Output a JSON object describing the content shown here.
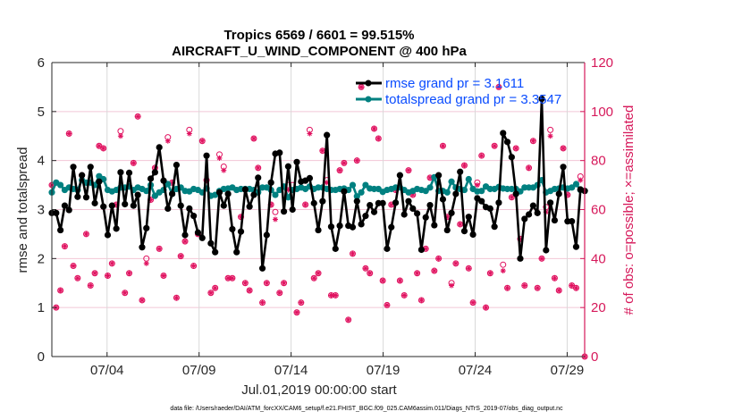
{
  "chart_data": {
    "type": "line",
    "title": [
      "Tropics 6569 / 6601 = 99.515%",
      "AIRCRAFT_U_WIND_COMPONENT @ 400 hPa"
    ],
    "xlabel": "Jul.01,2019 00:00:00 start",
    "ylabel": "rmse and totalspread",
    "ylabel_right": "# of obs: o=possible; ×=assimilated",
    "footnote": "data file: /Users/raeder/DAI/ATM_forcXX/CAM6_setup/f.e21.FHIST_BGC.f09_025.CAM6assim.011/Diags_NTrS_2019-07/obs_diag_output.nc",
    "xlim_days": [
      0,
      28.95
    ],
    "ylim": [
      0,
      6
    ],
    "ylim_right": [
      0,
      120
    ],
    "yticks": [
      "0",
      "1",
      "2",
      "3",
      "4",
      "5",
      "6"
    ],
    "yticks_right": [
      "0",
      "20",
      "40",
      "60",
      "80",
      "100",
      "120"
    ],
    "xticks": [
      {
        "day": 3,
        "label": "07/04"
      },
      {
        "day": 8,
        "label": "07/09"
      },
      {
        "day": 13,
        "label": "07/14"
      },
      {
        "day": 18,
        "label": "07/19"
      },
      {
        "day": 23,
        "label": "07/24"
      },
      {
        "day": 28,
        "label": "07/29"
      }
    ],
    "grid": true,
    "legend_position": "top-right",
    "colors": {
      "rmse": "#000000",
      "spread": "#008080",
      "obs": "#e0115f",
      "legend_text": "#0a4cff",
      "right_axis": "#d6185a",
      "hgrid": "#f2c6d6",
      "vgrid": "#d9d9d9"
    },
    "x_start_day": 0,
    "x_step_day": 0.2335,
    "series": [
      {
        "name": "rmse grand pr = 3.1611",
        "legend": "rmse grand pr = 3.1611",
        "axis": "left",
        "values": [
          2.93,
          2.93,
          2.58,
          3.08,
          2.99,
          3.87,
          3.26,
          3.7,
          3.25,
          3.87,
          3.13,
          3.57,
          3.06,
          2.48,
          3.08,
          2.61,
          3.76,
          3.11,
          3.75,
          3.08,
          3.3,
          2.23,
          2.62,
          3.63,
          3.76,
          4.27,
          3.59,
          3.02,
          3.32,
          3.91,
          3.08,
          2.48,
          3.02,
          2.87,
          2.53,
          2.42,
          4.1,
          2.31,
          2.13,
          3.35,
          3.08,
          3.32,
          2.6,
          2.13,
          2.55,
          3.41,
          3.06,
          3.3,
          3.65,
          1.8,
          2.48,
          3.55,
          4.14,
          4.16,
          2.96,
          3.88,
          3.0,
          3.97,
          3.57,
          3.59,
          3.64,
          3.13,
          2.58,
          3.17,
          4.52,
          2.65,
          2.2,
          2.67,
          3.37,
          2.67,
          2.64,
          3.17,
          2.7,
          2.87,
          3.09,
          2.95,
          3.13,
          3.13,
          2.2,
          2.64,
          3.14,
          3.7,
          2.9,
          3.17,
          3.02,
          2.92,
          2.18,
          2.84,
          3.09,
          2.68,
          3.7,
          3.21,
          2.58,
          2.93,
          3.32,
          3.77,
          2.56,
          2.85,
          2.49,
          3.23,
          3.17,
          3.05,
          3.02,
          2.65,
          3.14,
          4.56,
          4.38,
          4.07,
          3.32,
          2.0,
          2.81,
          2.9,
          3.08,
          2.93,
          5.26,
          2.17,
          3.14,
          2.78,
          3.32,
          3.87,
          2.76,
          2.76,
          2.24,
          3.41,
          3.38
        ]
      },
      {
        "name": "totalspread grand pr = 3.3547",
        "legend": "totalspread grand pr = 3.3547",
        "axis": "left",
        "values": [
          3.35,
          3.55,
          3.5,
          3.4,
          3.45,
          3.42,
          3.4,
          3.6,
          3.55,
          3.55,
          3.5,
          3.68,
          3.62,
          3.4,
          3.37,
          3.4,
          3.45,
          3.45,
          3.47,
          3.4,
          3.45,
          3.42,
          3.38,
          3.5,
          3.28,
          3.35,
          3.4,
          3.52,
          3.32,
          3.42,
          3.45,
          3.38,
          3.37,
          3.42,
          3.4,
          3.35,
          3.43,
          3.28,
          3.3,
          3.38,
          3.42,
          3.43,
          3.45,
          3.4,
          3.42,
          3.42,
          3.42,
          3.4,
          3.35,
          3.45,
          3.45,
          3.4,
          3.3,
          3.4,
          3.47,
          3.25,
          3.4,
          3.42,
          3.45,
          3.42,
          3.47,
          3.42,
          3.45,
          3.45,
          3.42,
          3.4,
          3.4,
          3.42,
          3.43,
          3.4,
          3.5,
          3.27,
          3.35,
          3.5,
          3.43,
          3.42,
          3.42,
          3.36,
          3.4,
          3.42,
          3.45,
          3.45,
          3.4,
          3.35,
          3.38,
          3.42,
          3.4,
          3.38,
          3.45,
          3.66,
          3.38,
          3.38,
          3.35,
          3.57,
          3.45,
          3.42,
          3.4,
          3.62,
          3.42,
          3.37,
          3.38,
          3.47,
          3.42,
          3.42,
          3.46,
          3.43,
          3.42,
          3.42,
          3.42,
          3.37,
          3.45,
          3.45,
          3.45,
          3.5,
          3.6,
          3.35,
          3.38,
          3.42,
          3.43,
          3.45,
          3.43,
          3.45,
          3.52,
          3.4,
          3.38
        ]
      },
      {
        "name": "obs assimilated",
        "axis": "right",
        "values": [
          70,
          20,
          27,
          45,
          91,
          37,
          32,
          74,
          50,
          29,
          34,
          86,
          85,
          33,
          38,
          62,
          90,
          26,
          34,
          79,
          98,
          23,
          38,
          64,
          77,
          44,
          33,
          88,
          71,
          24,
          41,
          47,
          91,
          37,
          50,
          88,
          72,
          26,
          28,
          81,
          76,
          32,
          32,
          68,
          57,
          30,
          27,
          89,
          77,
          22,
          30,
          62,
          56,
          26,
          30,
          68,
          68,
          18,
          22,
          62,
          91,
          32,
          34,
          84,
          71,
          25,
          25,
          76,
          79,
          15,
          42,
          80,
          110,
          36,
          34,
          93,
          89,
          31,
          21,
          62,
          68,
          31,
          25,
          76,
          66,
          34,
          23,
          44,
          73,
          35,
          40,
          86,
          57,
          29,
          38,
          54,
          78,
          36,
          22,
          70,
          82,
          20,
          34,
          86,
          110,
          35,
          28,
          65,
          85,
          48,
          29,
          77,
          88,
          28,
          40,
          59,
          90,
          32,
          27,
          85,
          66,
          29,
          28,
          72,
          0
        ]
      },
      {
        "name": "obs possible",
        "axis": "right",
        "values": [
          70,
          20,
          27,
          45,
          91,
          37,
          32,
          74,
          50,
          29,
          34,
          86,
          85,
          33,
          38,
          62,
          92,
          26,
          34,
          79,
          98,
          23,
          40,
          64,
          77,
          44,
          33,
          89.5,
          71,
          24,
          41,
          47,
          92.5,
          37,
          50,
          88,
          72,
          26,
          28,
          82.5,
          77.5,
          32,
          32,
          68,
          57,
          30,
          27,
          89,
          77,
          22,
          30,
          62,
          59,
          26,
          30,
          70,
          70,
          18,
          22,
          62,
          92.5,
          32,
          34,
          84,
          72,
          25,
          25,
          76,
          79,
          15,
          42,
          80,
          110,
          36,
          34,
          93,
          89,
          31,
          21,
          62,
          68,
          31,
          25,
          76,
          66,
          34,
          23,
          44,
          73,
          35,
          40,
          86,
          57,
          30,
          38,
          54,
          78,
          36,
          22,
          71,
          82,
          20,
          34,
          86,
          110,
          37.5,
          28,
          65,
          85,
          48,
          29,
          77,
          88,
          28,
          40,
          61,
          92.5,
          32,
          27,
          85,
          66,
          29,
          28,
          73.5,
          0
        ]
      }
    ]
  }
}
